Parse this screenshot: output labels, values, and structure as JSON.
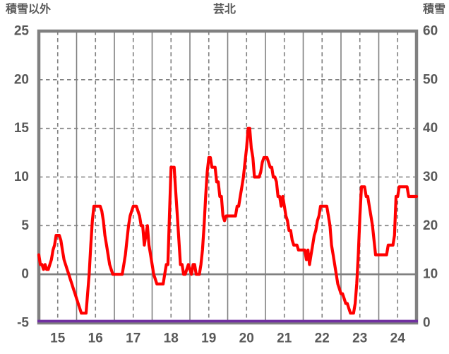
{
  "header": {
    "left_axis_title": "積雪以外",
    "title": "芸北",
    "right_axis_title": "積雪"
  },
  "colors": {
    "red_series": "#ff0000",
    "purple_series": "#7030a0",
    "grid": "#808080",
    "frame": "#808080",
    "text": "#595959",
    "background": "#ffffff"
  },
  "chart_data": {
    "type": "line",
    "title": "芸北",
    "grid": true,
    "legend_position": "none",
    "left_axis": {
      "title": "積雪以外",
      "ticks": [
        25,
        20,
        15,
        10,
        5,
        0,
        -5
      ],
      "range": [
        -5,
        25
      ]
    },
    "right_axis": {
      "title": "積雪",
      "ticks": [
        60,
        50,
        40,
        30,
        20,
        10,
        0
      ],
      "range": [
        0,
        60
      ]
    },
    "x_axis": {
      "labels": [
        "15",
        "16",
        "17",
        "18",
        "19",
        "20",
        "21",
        "22",
        "23",
        "24"
      ],
      "range": [
        15,
        25
      ],
      "solid_gridlines_at_day_boundaries": true,
      "dashed_gridlines_at_half_days": true
    },
    "series": [
      {
        "name": "積雪以外",
        "color": "#ff0000",
        "axis": "left",
        "x_start_day": 15,
        "x_step_days": 0.0416667,
        "values": [
          2,
          1,
          1,
          0.5,
          1,
          0.5,
          0.5,
          1,
          1.5,
          2.5,
          3,
          4,
          4,
          4,
          3.5,
          2.5,
          1.5,
          1,
          0.5,
          0,
          -0.5,
          -1,
          -1.5,
          -2,
          -2.5,
          -3,
          -3.5,
          -4,
          -4,
          -4,
          -4,
          -2,
          0,
          3,
          5.5,
          7,
          7,
          7,
          7,
          7,
          6.5,
          5.5,
          4,
          3,
          2,
          1,
          0.5,
          0,
          0,
          0,
          0,
          0,
          0,
          0,
          1,
          2,
          3.5,
          5,
          6,
          6.5,
          7,
          7,
          7,
          6.5,
          6,
          5,
          5,
          3,
          4,
          5,
          3,
          2,
          1,
          0,
          -0.5,
          -1,
          -1,
          -1,
          -1,
          -1,
          0,
          1,
          1,
          6,
          11,
          11,
          11,
          8.5,
          6,
          3.5,
          1,
          1,
          0,
          0,
          0.5,
          1,
          0.5,
          0,
          1,
          1,
          0,
          0,
          0,
          1,
          2.5,
          5,
          8,
          10.5,
          12,
          12,
          11,
          11,
          11,
          9.5,
          9.5,
          8,
          8,
          6,
          5.5,
          6,
          6,
          6,
          6,
          6,
          6,
          6,
          7,
          7,
          8,
          9,
          10,
          11.5,
          13,
          15,
          15,
          13,
          12,
          10,
          10,
          10,
          10,
          10.5,
          11.5,
          12,
          12,
          12,
          11.5,
          11,
          11,
          10,
          10,
          9.5,
          8,
          8,
          7,
          8,
          7,
          6,
          5.5,
          4.5,
          4.5,
          3.5,
          3,
          3,
          3,
          2.5,
          2.5,
          2.5,
          2.5,
          2.5,
          1.5,
          2.5,
          1,
          2,
          3,
          4,
          4.5,
          5.5,
          6,
          7,
          7,
          7,
          7,
          7,
          6,
          5,
          3,
          2,
          1,
          0,
          -1,
          -1.5,
          -2,
          -2,
          -2.5,
          -3,
          -3,
          -3.5,
          -4,
          -4,
          -4,
          -3,
          -1,
          2,
          6,
          9,
          9,
          9,
          8,
          8,
          7,
          6,
          5,
          3.5,
          2,
          2,
          2,
          2,
          2,
          2,
          2,
          2,
          3,
          3,
          3,
          3,
          4,
          8,
          8,
          9,
          9,
          9,
          9,
          9,
          9,
          8,
          8,
          8,
          8,
          8,
          8
        ]
      },
      {
        "name": "積雪",
        "color": "#7030a0",
        "axis": "right",
        "constant_value": 0
      }
    ]
  }
}
